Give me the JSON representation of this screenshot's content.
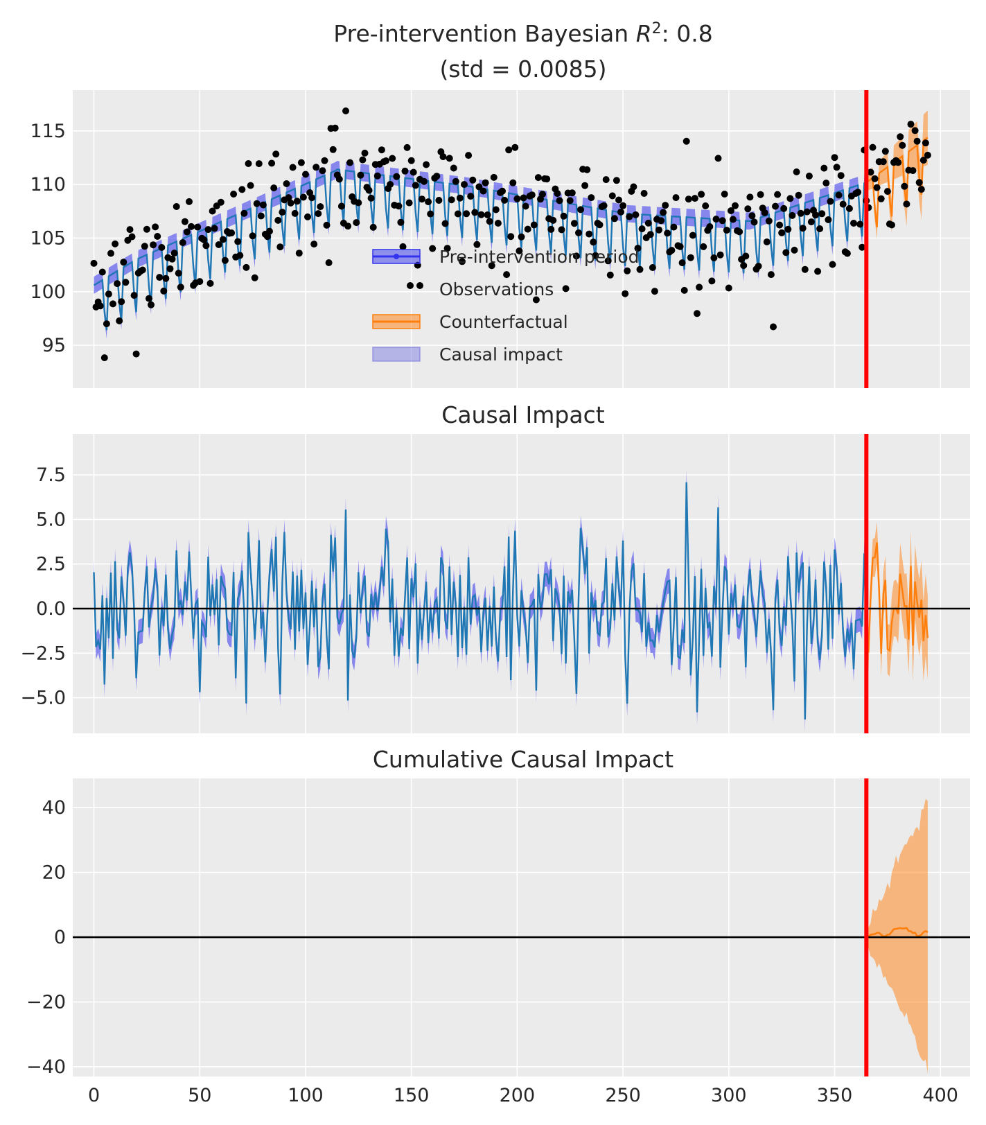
{
  "chart_data": [
    {
      "type": "line",
      "panel": "observations",
      "title_line1_prefix": "Pre-intervention Bayesian ",
      "title_r": "R",
      "title_r_sup": "2",
      "title_line1_suffix": ": 0.8",
      "title_line2": "(std = 0.0085)",
      "xlim": [
        -10,
        414
      ],
      "ylim": [
        91,
        118.8
      ],
      "yticks": [
        95,
        100,
        105,
        110,
        115
      ],
      "ytick_labels": [
        "95",
        "100",
        "105",
        "110",
        "115"
      ],
      "intervention_x": 365,
      "n_observations": 395,
      "series": [
        {
          "name": "Pre-intervention period",
          "kind": "line+band",
          "x_range": [
            0,
            365
          ],
          "color": "#1f77b4",
          "band_color": "#3333ee"
        },
        {
          "name": "Observations",
          "kind": "scatter",
          "x_range": [
            0,
            394
          ],
          "color": "#000000"
        },
        {
          "name": "Counterfactual",
          "kind": "line+band",
          "x_range": [
            365,
            394
          ],
          "color": "#ff7f0e"
        },
        {
          "name": "Causal impact",
          "kind": "band",
          "color": "#7070e0"
        }
      ],
      "legend": {
        "placement": "center",
        "items": [
          {
            "label": "Pre-intervention period",
            "style": "line-band",
            "color": "#3333ee",
            "marker": true
          },
          {
            "label": "Observations",
            "style": "dots",
            "color": "#000000"
          },
          {
            "label": "Counterfactual",
            "style": "line-band",
            "color": "#ff7f0e"
          },
          {
            "label": "Causal impact",
            "style": "band",
            "color": "#7070e0"
          }
        ]
      }
    },
    {
      "type": "line",
      "panel": "impact",
      "title": "Causal Impact",
      "xlim": [
        -10,
        414
      ],
      "ylim": [
        -7.0,
        9.8
      ],
      "yticks": [
        -5.0,
        -2.5,
        0.0,
        2.5,
        5.0,
        7.5
      ],
      "ytick_labels": [
        "−5.0",
        "−2.5",
        "0.0",
        "2.5",
        "5.0",
        "7.5"
      ],
      "zero_line": 0,
      "intervention_x": 365,
      "series": [
        {
          "name": "Causal impact (pre)",
          "x_range": [
            0,
            365
          ],
          "color": "#1f77b4"
        },
        {
          "name": "Causal impact (post)",
          "x_range": [
            365,
            394
          ],
          "color": "#ff7f0e"
        }
      ]
    },
    {
      "type": "line",
      "panel": "cumulative",
      "title": "Cumulative Causal Impact",
      "xlim": [
        -10,
        414
      ],
      "ylim": [
        -43,
        49
      ],
      "yticks": [
        -40,
        -20,
        0,
        20,
        40
      ],
      "ytick_labels": [
        "−40",
        "−20",
        "0",
        "20",
        "40"
      ],
      "xticks": [
        0,
        50,
        100,
        150,
        200,
        250,
        300,
        350,
        400
      ],
      "xtick_labels": [
        "0",
        "50",
        "100",
        "150",
        "200",
        "250",
        "300",
        "350",
        "400"
      ],
      "zero_line": 0,
      "intervention_x": 365,
      "series": [
        {
          "name": "Cumulative impact",
          "x_range": [
            365,
            394
          ],
          "color": "#ff7f0e",
          "band_upper_end": 45,
          "band_lower_end": -39,
          "mean_end": 4
        }
      ]
    }
  ]
}
